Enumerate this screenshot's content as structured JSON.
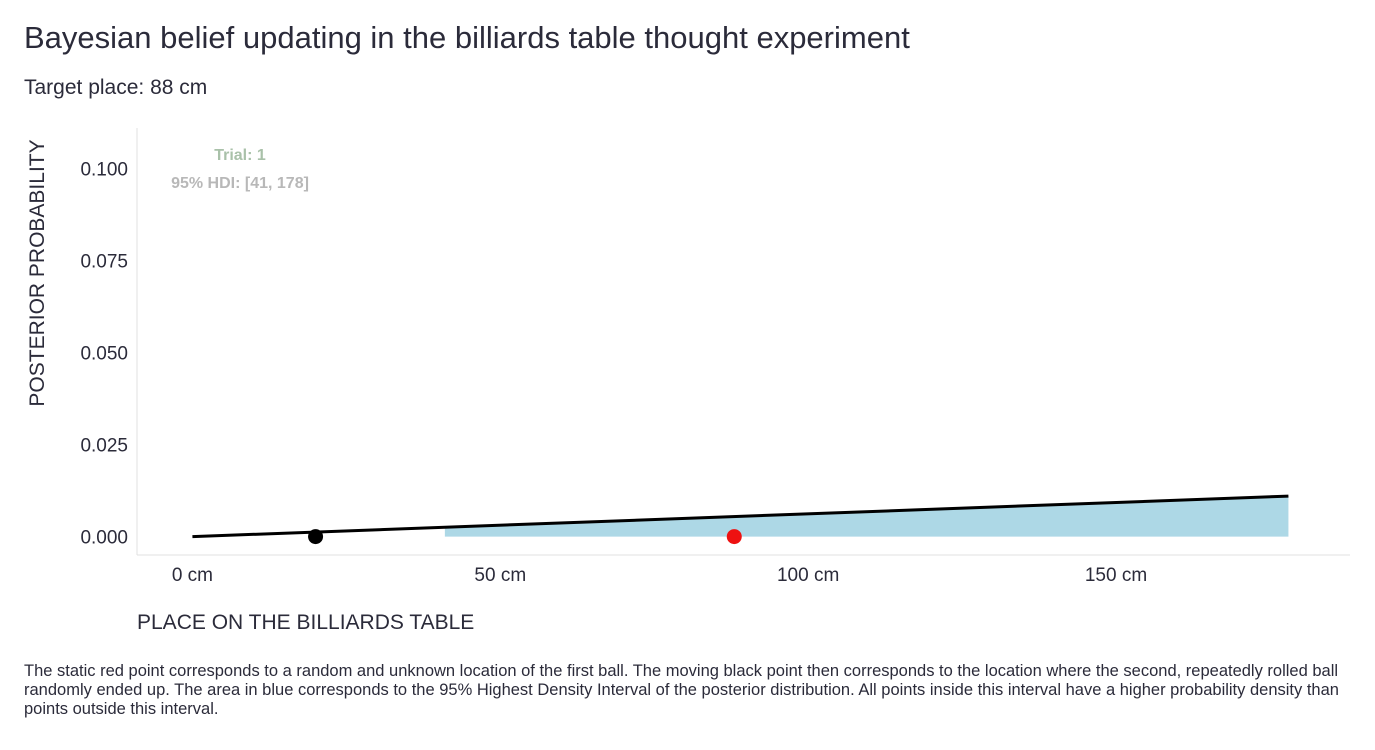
{
  "title": "Bayesian belief updating in the billiards table thought experiment",
  "subtitle": "Target place: 88 cm",
  "caption": "The static red point corresponds to a random and unknown location of the first ball. The moving black point then corresponds to the location where the second, repeatedly rolled ball randomly ended up. The area in blue corresponds to the 95% Highest Density Interval of the posterior distribution. All points inside this interval have a higher probability density than points outside this interval.",
  "chart_data": {
    "type": "area",
    "xlabel": "PLACE ON THE BILLIARDS TABLE",
    "ylabel": "POSTERIOR PROBABILITY",
    "xlim": [
      -9,
      188
    ],
    "ylim": [
      -0.005,
      0.111
    ],
    "x_ticks": [
      {
        "value": 0,
        "label": "0 cm"
      },
      {
        "value": 50,
        "label": "50 cm"
      },
      {
        "value": 100,
        "label": "100 cm"
      },
      {
        "value": 150,
        "label": "150 cm"
      }
    ],
    "y_ticks": [
      {
        "value": 0.0,
        "label": "0.000"
      },
      {
        "value": 0.025,
        "label": "0.025"
      },
      {
        "value": 0.05,
        "label": "0.050"
      },
      {
        "value": 0.075,
        "label": "0.075"
      },
      {
        "value": 0.1,
        "label": "0.100"
      }
    ],
    "grid": false,
    "series": [
      {
        "x": [
          0,
          178
        ],
        "y": [
          0.0,
          0.011
        ],
        "color": "#000000"
      }
    ],
    "hdi": {
      "lower": 41,
      "upper": 178,
      "color": "#add8e6"
    },
    "points": [
      {
        "x": 20,
        "y": 0,
        "color": "#000000"
      },
      {
        "x": 88,
        "y": 0,
        "color": "#ee1111"
      }
    ],
    "annotation": {
      "trial_label": "Trial: 1",
      "hdi_label": "95% HDI: [41, 178]",
      "trial_color": "#a9c1a9",
      "hdi_color": "#b8b8b8"
    }
  }
}
